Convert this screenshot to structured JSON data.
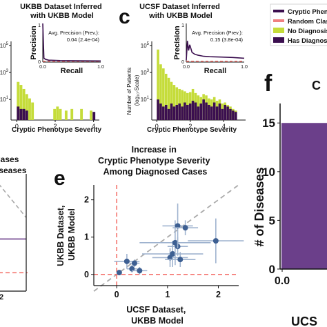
{
  "panel_letters": {
    "c": "c",
    "e": "e",
    "f": "f"
  },
  "legend": [
    {
      "label": "Cryptic Phenotype",
      "color": "#3b0f4f"
    },
    {
      "label": "Random Classifier",
      "color": "#f08080"
    },
    {
      "label": "No Diagnosis",
      "color": "#c5dc3a"
    },
    {
      "label": "Has Diagnosis",
      "color": "#3b0f4f"
    }
  ],
  "colors": {
    "no_diagnosis": "#c5dc3a",
    "has_diagnosis": "#3b0f4f",
    "curve": "#3b0f4f",
    "random": "#f4756f",
    "points": "#3d5f92",
    "bar_f": "#6b3f8a"
  },
  "chart_data": [
    {
      "id": "panel-b",
      "type": "bar",
      "title": "UKBB Dataset Inferred\nwith UKBB Model",
      "xlabel": "Cryptic Phenotype Severity",
      "xlim": [
        -0.3,
        4.3
      ],
      "ylim": [
        0.3,
        200000
      ],
      "log_y": true,
      "x_ticks": [
        "0",
        "2",
        "4"
      ],
      "y_ticks": [
        "10^5",
        "10^3",
        "10^1"
      ],
      "bin_width": 0.15,
      "bins_x": [
        0,
        0.15,
        0.3,
        0.45,
        0.6,
        0.75,
        1.9,
        2.05,
        2.2,
        2.5,
        2.8,
        3.3,
        3.8,
        3.95
      ],
      "series": [
        {
          "name": "No Diagnosis",
          "values": [
            200,
            120,
            60,
            25,
            12,
            6,
            2,
            3,
            2,
            1.5,
            2,
            2,
            1.5,
            0
          ]
        },
        {
          "name": "Has Diagnosis",
          "values": [
            3,
            2,
            2,
            1.5,
            0,
            0,
            0,
            0,
            0,
            0,
            0,
            0,
            0,
            1.2
          ]
        }
      ],
      "inset": {
        "xlabel": "Recall",
        "ylabel": "Precision",
        "x_ticks": [
          "0.0",
          "1.0"
        ],
        "y_ticks": [
          "1",
          "0"
        ],
        "annotation_line1": "Avg. Precision (Prev.):",
        "annotation_line2": "0.04 (2.4e-04)",
        "curve_x": [
          0,
          0.02,
          0.05,
          0.1,
          0.3,
          0.6,
          1.0
        ],
        "curve_y": [
          1.0,
          0.1,
          0.07,
          0.05,
          0.04,
          0.035,
          0.03
        ],
        "random_y": 0.02
      }
    },
    {
      "id": "panel-c",
      "type": "bar",
      "title": "UCSF Dataset Inferred\nwith UKBB Model",
      "xlabel": "Cryptic Phenotype Severity",
      "ylabel_line1": "Number of Patients",
      "ylabel_line2": "(log₁₀-Scale)",
      "xlim": [
        -0.3,
        5.3
      ],
      "ylim": [
        0.3,
        200000
      ],
      "log_y": true,
      "x_ticks": [
        "0",
        "2",
        "4"
      ],
      "y_ticks": [
        "10^5",
        "10^3",
        "10^1"
      ],
      "bin_width": 0.16,
      "bins_x": [
        0,
        0.16,
        0.32,
        0.48,
        0.64,
        0.8,
        0.96,
        1.12,
        1.28,
        1.44,
        1.6,
        1.76,
        1.92,
        2.08,
        2.24,
        2.4,
        2.56,
        2.72,
        2.88,
        3.04,
        3.2,
        3.36,
        3.52,
        3.68,
        3.84,
        4.0,
        4.16,
        4.32,
        4.48,
        4.64
      ],
      "series": [
        {
          "name": "No Diagnosis",
          "values": [
            50000,
            4000,
            2000,
            800,
            400,
            200,
            120,
            80,
            60,
            50,
            40,
            30,
            35,
            60,
            30,
            20,
            15,
            25,
            20,
            12,
            10,
            15,
            8,
            10,
            5,
            6,
            4,
            3,
            2,
            1.5
          ]
        },
        {
          "name": "Has Diagnosis",
          "values": [
            10,
            5,
            3,
            4,
            2,
            5,
            3,
            4,
            5,
            3,
            6,
            4,
            5,
            8,
            6,
            3,
            5,
            10,
            6,
            4,
            3,
            6,
            3,
            5,
            2,
            4,
            3,
            2,
            1.5,
            1.2
          ]
        }
      ],
      "inset": {
        "xlabel": "Recall",
        "ylabel": "Precision",
        "x_ticks": [
          "0.0",
          "1.0"
        ],
        "y_ticks": [
          "1",
          "0"
        ],
        "annotation_line1": "Avg. Precision (Prev.):",
        "annotation_line2": "0.15 (3.8e-04)",
        "curve_x": [
          0,
          0.02,
          0.04,
          0.06,
          0.08,
          0.1,
          0.15,
          0.2,
          0.3,
          0.4,
          0.6,
          0.8,
          1.0
        ],
        "curve_y": [
          0.05,
          0.55,
          0.3,
          0.45,
          0.35,
          0.25,
          0.2,
          0.18,
          0.15,
          0.14,
          0.13,
          0.12,
          0.1
        ],
        "random_y": 0.02
      }
    },
    {
      "id": "panel-d",
      "type": "line",
      "title_line1": "Cases",
      "title_line2": "iseases",
      "x_ticks": [
        "2"
      ],
      "ylim": [
        -0.3,
        1.5
      ],
      "hline": 0,
      "line_y": 0.55
    },
    {
      "id": "panel-e",
      "type": "scatter",
      "title": "Increase in\nCryptic Phenotype Severity\nAmong Diagnosed Cases",
      "xlabel": "UCSF Dataset,\nUKBB Model",
      "ylabel": "UKBB Dataset,\nUKBB Model",
      "xlim": [
        -0.45,
        2.4
      ],
      "ylim": [
        -0.3,
        2.4
      ],
      "x_ticks": [
        0,
        1,
        2
      ],
      "y_ticks": [
        0,
        1,
        2
      ],
      "points": [
        {
          "x": 0.05,
          "y": 0.05,
          "xerr": 0.05,
          "yerr": 0.05
        },
        {
          "x": 0.2,
          "y": 0.35,
          "xerr": 0.25,
          "yerr": 0.2
        },
        {
          "x": 0.3,
          "y": 0.15,
          "xerr": 0.1,
          "yerr": 0.1
        },
        {
          "x": 0.45,
          "y": 0.1,
          "xerr": 0.15,
          "yerr": 0.1
        },
        {
          "x": 0.35,
          "y": 0.3,
          "xerr": 0.1,
          "yerr": 0.1
        },
        {
          "x": 1.05,
          "y": 0.45,
          "xerr": 0.35,
          "yerr": 0.25
        },
        {
          "x": 1.1,
          "y": 0.55,
          "xerr": 0.6,
          "yerr": 0.35
        },
        {
          "x": 1.15,
          "y": 0.85,
          "xerr": 0.7,
          "yerr": 0.6
        },
        {
          "x": 1.25,
          "y": 0.4,
          "xerr": 0.3,
          "yerr": 0.2
        },
        {
          "x": 1.2,
          "y": 0.75,
          "xerr": 0.2,
          "yerr": 0.25
        },
        {
          "x": 1.2,
          "y": 1.3,
          "xerr": 0.3,
          "yerr": 0.6
        },
        {
          "x": 1.35,
          "y": 1.25,
          "xerr": 0.25,
          "yerr": 0.2
        },
        {
          "x": 1.95,
          "y": 0.9,
          "xerr": 0.55,
          "yerr": 0.6
        }
      ]
    },
    {
      "id": "panel-f",
      "type": "bar",
      "title_fragment": "C",
      "ylabel": "# of Diseases",
      "xlabel_fragment": "UCS",
      "y_ticks": [
        0,
        5,
        10,
        15
      ],
      "ylim": [
        0,
        17
      ],
      "x_tick": "0.0",
      "values": [
        15
      ]
    }
  ]
}
